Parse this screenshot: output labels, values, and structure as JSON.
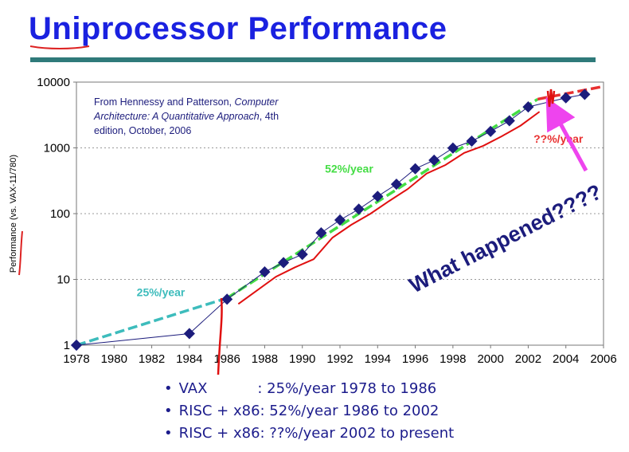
{
  "page": {
    "title": "Uniprocessor Performance",
    "accent_color": "#1a21e0",
    "rule_color": "#2f7a7a"
  },
  "chart_data": {
    "type": "scatter",
    "title": "",
    "ylabel": "Performance (vs. VAX-11/780)",
    "xlabel": "",
    "yscale": "log",
    "xlim": [
      1978,
      2006
    ],
    "ylim": [
      1,
      10000
    ],
    "grid": "horizontal dotted",
    "x_ticks": [
      "1978",
      "1980",
      "1982",
      "1984",
      "1986",
      "1988",
      "1990",
      "1992",
      "1994",
      "1996",
      "1998",
      "2000",
      "2002",
      "2004",
      "2006"
    ],
    "y_ticks": [
      "1",
      "10",
      "100",
      "1000",
      "10000"
    ],
    "series": [
      {
        "color": "#1c1c7c",
        "x": [
          1978,
          1984,
          1986,
          1988,
          1989,
          1990,
          1991,
          1992,
          1993,
          1994,
          1995,
          1996,
          1997,
          1998,
          1999,
          2000,
          2001,
          2002,
          2004,
          2005
        ],
        "y": [
          1,
          1.5,
          5,
          13,
          18,
          24,
          51,
          80,
          117,
          183,
          280,
          481,
          649,
          993,
          1267,
          1779,
          2584,
          4195,
          5764,
          6505
        ]
      }
    ],
    "trend_lines": [
      {
        "label": "25%/year",
        "color": "#3dbcbc",
        "x": [
          1978,
          1986
        ],
        "y": [
          1,
          5.2
        ]
      },
      {
        "label": "52%/year",
        "color": "#44dd44",
        "x": [
          1986,
          2002.5
        ],
        "y": [
          5.2,
          5500
        ]
      },
      {
        "label": "??%/year",
        "color": "#e83030",
        "x": [
          2002.5,
          2006
        ],
        "y": [
          5500,
          8600
        ]
      }
    ],
    "annotations": {
      "source_prefix": "From Hennessy and Patterson, ",
      "source_italic_1": "Computer",
      "source_italic_2": "Architecture: A Quantitative Approach",
      "source_suffix": ", 4th",
      "source_line3": "edition, October, 2006",
      "what_happened": "What happened????",
      "what_happened_color": "#1c1c7c",
      "arrow_color": "#ee44ee"
    }
  },
  "bullets": [
    "VAX           : 25%/year 1978 to 1986",
    "RISC + x86: 52%/year 1986 to 2002",
    "RISC + x86: ??%/year 2002 to present"
  ]
}
